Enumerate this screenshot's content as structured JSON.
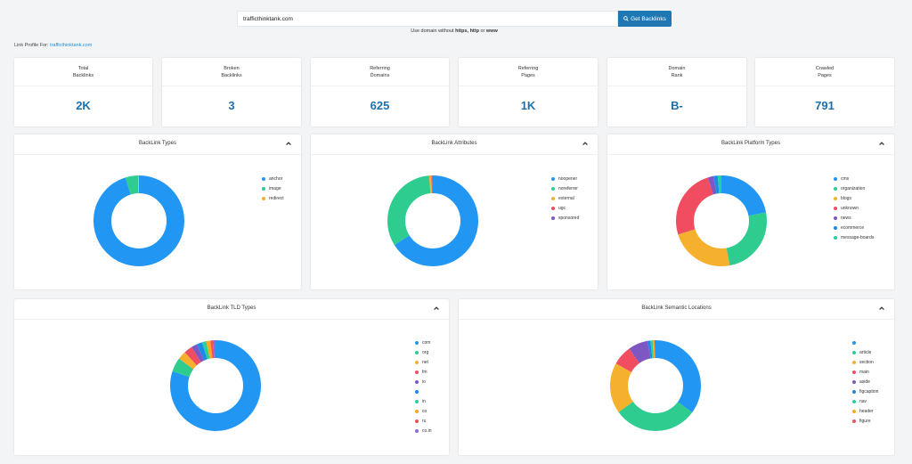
{
  "search": {
    "value": "trafficthinktank.com",
    "button_label": "Get Backlinks"
  },
  "hint": {
    "prefix": "Use domain without ",
    "b1": "https, http",
    "mid": " or ",
    "b2": "www"
  },
  "profile": {
    "label": "Link Profile For: ",
    "domain": "trafficthinktank.com"
  },
  "stats": [
    {
      "line1": "Total",
      "line2": "Backlinks",
      "value": "2K"
    },
    {
      "line1": "Broken",
      "line2": "Backlinks",
      "value": "3"
    },
    {
      "line1": "Referring",
      "line2": "Domains",
      "value": "625"
    },
    {
      "line1": "Referring",
      "line2": "Pages",
      "value": "1K"
    },
    {
      "line1": "Domain",
      "line2": "Rank",
      "value": "B-"
    },
    {
      "line1": "Crawled",
      "line2": "Pages",
      "value": "791"
    }
  ],
  "charts": [
    {
      "title": "BackLink Types",
      "items": [
        {
          "label": "anchor",
          "color": "#2196f3",
          "share": 0.95
        },
        {
          "label": "image",
          "color": "#2ecc8f",
          "share": 0.045
        },
        {
          "label": "redirect",
          "color": "#f5b02e",
          "share": 0.005
        }
      ]
    },
    {
      "title": "BackLink Attributes",
      "items": [
        {
          "label": "noopener",
          "color": "#2196f3",
          "share": 0.66
        },
        {
          "label": "noreferrer",
          "color": "#2ecc8f",
          "share": 0.325
        },
        {
          "label": "external",
          "color": "#f5b02e",
          "share": 0.008
        },
        {
          "label": "ugc",
          "color": "#f04e60",
          "share": 0.004
        },
        {
          "label": "sponsored",
          "color": "#7e57c2",
          "share": 0.003
        }
      ]
    },
    {
      "title": "BackLink Platform Types",
      "items": [
        {
          "label": "cms",
          "color": "#2196f3",
          "share": 0.22
        },
        {
          "label": "organization",
          "color": "#2ecc8f",
          "share": 0.25
        },
        {
          "label": "blogs",
          "color": "#f5b02e",
          "share": 0.23
        },
        {
          "label": "unknown",
          "color": "#f04e60",
          "share": 0.25
        },
        {
          "label": "news",
          "color": "#7e57c2",
          "share": 0.02
        },
        {
          "label": "ecommerce",
          "color": "#1e88e5",
          "share": 0.015
        },
        {
          "label": "message-boards",
          "color": "#26d0a0",
          "share": 0.015
        }
      ]
    },
    {
      "title": "BackLink TLD Types",
      "items": [
        {
          "label": "com",
          "color": "#2196f3",
          "share": 0.8
        },
        {
          "label": "org",
          "color": "#2ecc8f",
          "share": 0.05
        },
        {
          "label": "net",
          "color": "#f5b02e",
          "share": 0.03
        },
        {
          "label": "fm",
          "color": "#f04e60",
          "share": 0.03
        },
        {
          "label": "io",
          "color": "#7e57c2",
          "share": 0.02
        },
        {
          "label": "",
          "color": "#1e88e5",
          "share": 0.02
        },
        {
          "label": "in",
          "color": "#26d0a0",
          "share": 0.015
        },
        {
          "label": "co",
          "color": "#ffa726",
          "share": 0.015
        },
        {
          "label": "ru",
          "color": "#ef5350",
          "share": 0.01
        },
        {
          "label": "co.in",
          "color": "#8e6ad8",
          "share": 0.01
        }
      ]
    },
    {
      "title": "BackLink Semantic Locations",
      "items": [
        {
          "label": "",
          "color": "#2196f3",
          "share": 0.35
        },
        {
          "label": "article",
          "color": "#2ecc8f",
          "share": 0.3
        },
        {
          "label": "section",
          "color": "#f5b02e",
          "share": 0.18
        },
        {
          "label": "main",
          "color": "#f04e60",
          "share": 0.07
        },
        {
          "label": "aside",
          "color": "#7e57c2",
          "share": 0.07
        },
        {
          "label": "figcaption",
          "color": "#1e88e5",
          "share": 0.01
        },
        {
          "label": "nav",
          "color": "#26d0a0",
          "share": 0.008
        },
        {
          "label": "header",
          "color": "#ffa726",
          "share": 0.007
        },
        {
          "label": "figure",
          "color": "#ef5350",
          "share": 0.005
        }
      ]
    }
  ]
}
